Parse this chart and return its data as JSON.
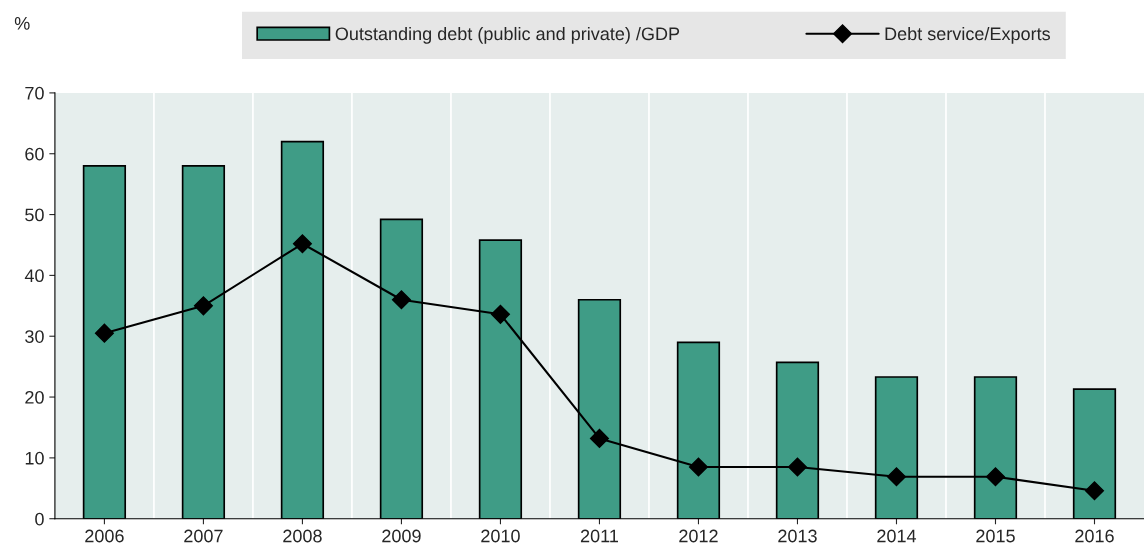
{
  "chart_data": {
    "type": "bar",
    "ylabel": "%",
    "categories": [
      "2006",
      "2007",
      "2008",
      "2009",
      "2010",
      "2011",
      "2012",
      "2013",
      "2014",
      "2015",
      "2016"
    ],
    "series": [
      {
        "name": "Outstanding debt (public and private) /GDP",
        "color": "#3f9c86",
        "values": [
          58,
          58,
          62,
          49.2,
          45.8,
          36,
          29,
          25.7,
          23.3,
          23.3,
          21.3
        ]
      },
      {
        "name": "Debt service/Exports",
        "type": "line",
        "color": "#000000",
        "marker": "diamond",
        "values": [
          30.5,
          35,
          45.2,
          36,
          33.6,
          13.2,
          8.5,
          8.5,
          6.9,
          6.9,
          4.6
        ]
      }
    ],
    "ylim": [
      0,
      70
    ],
    "yticks": [
      0,
      10,
      20,
      30,
      40,
      50,
      60,
      70
    ],
    "grid": "x",
    "legend": "top"
  }
}
